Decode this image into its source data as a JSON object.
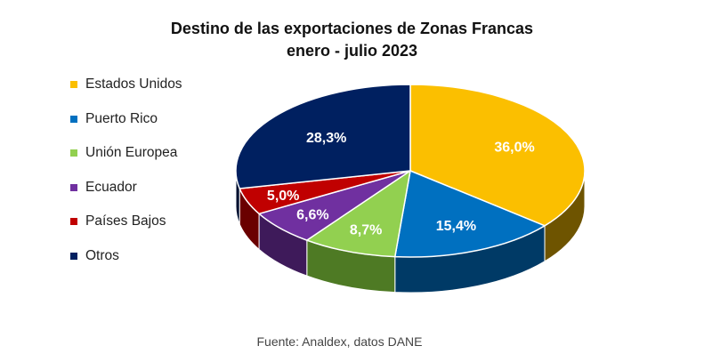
{
  "title_lines": [
    "Destino de las exportaciones de Zonas Francas",
    "enero - julio 2023"
  ],
  "source": "Fuente: Analdex, datos DANE",
  "chart_data": {
    "type": "pie",
    "style": "3d",
    "title": "Destino de las exportaciones de Zonas Francas enero - julio 2023",
    "legend_position": "left",
    "slices": [
      {
        "label": "Estados Unidos",
        "value": 36.0,
        "display": "36,0%",
        "color": "#FBBF00",
        "side_color": "#6E5400"
      },
      {
        "label": "Puerto Rico",
        "value": 15.4,
        "display": "15,4%",
        "color": "#0070C0",
        "side_color": "#003A66"
      },
      {
        "label": "Unión Europea",
        "value": 8.7,
        "display": "8,7%",
        "color": "#92D050",
        "side_color": "#4E7A24"
      },
      {
        "label": "Ecuador",
        "value": 6.6,
        "display": "6,6%",
        "color": "#7030A0",
        "side_color": "#3E1A5A"
      },
      {
        "label": "Países Bajos",
        "value": 5.0,
        "display": "5,0%",
        "color": "#C00000",
        "side_color": "#6A0000"
      },
      {
        "label": "Otros",
        "value": 28.3,
        "display": "28,3%",
        "color": "#002060",
        "side_color": "#001030"
      }
    ]
  }
}
